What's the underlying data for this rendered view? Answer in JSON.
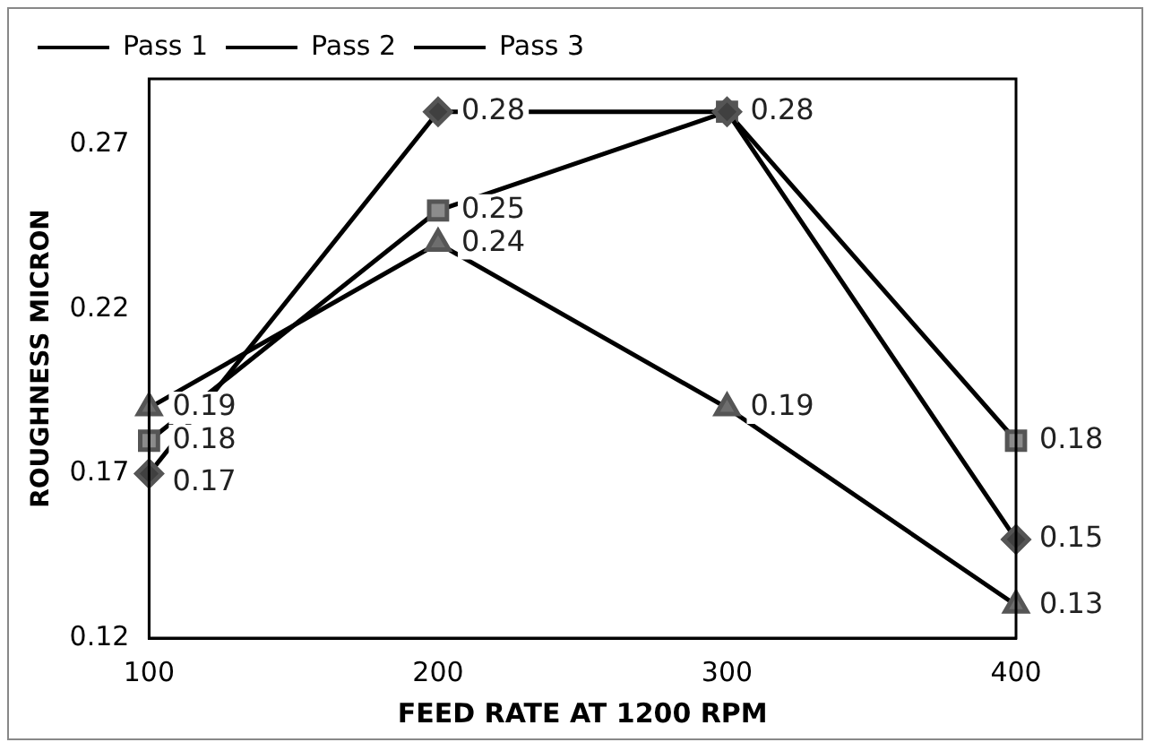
{
  "chart_data": {
    "type": "line",
    "xlabel": "FEED RATE AT 1200 RPM",
    "ylabel": "ROUGHNESS MICRON",
    "categories": [
      "100",
      "200",
      "300",
      "400"
    ],
    "series": [
      {
        "name": "Pass 1",
        "color": "#404040",
        "marker": "diamond",
        "values": [
          0.17,
          0.28,
          0.28,
          0.15
        ],
        "value_labels": [
          "0.17",
          "0.28",
          null,
          "0.15"
        ]
      },
      {
        "name": "Pass 2",
        "color": "#8c8c8c",
        "marker": "square",
        "values": [
          0.18,
          0.25,
          0.28,
          0.18
        ],
        "value_labels": [
          "0.18",
          "0.25",
          "0.28",
          "0.18"
        ]
      },
      {
        "name": "Pass 3",
        "color": "#6e6e6e",
        "marker": "triangle",
        "values": [
          0.19,
          0.24,
          0.19,
          0.13
        ],
        "value_labels": [
          "0.19",
          "0.24",
          "0.19",
          "0.13"
        ]
      }
    ],
    "ylim": [
      0.12,
      0.29
    ],
    "yticks": [
      0.12,
      0.17,
      0.22,
      0.27
    ],
    "grid": false,
    "legend": "top left",
    "line_style": "solid"
  }
}
